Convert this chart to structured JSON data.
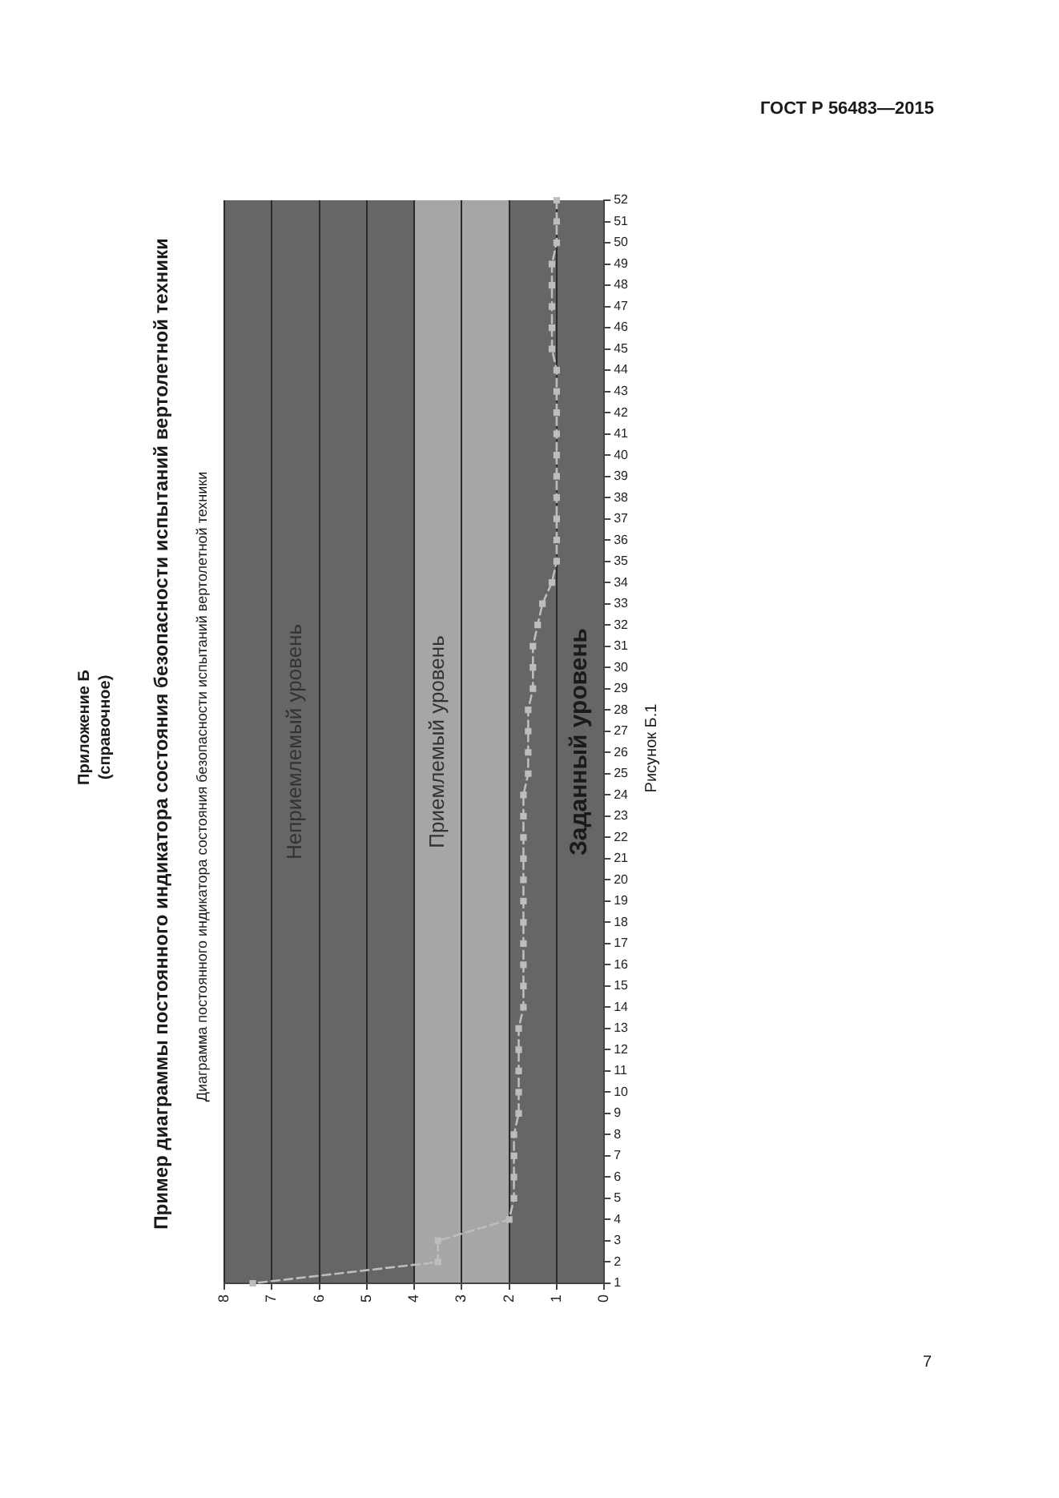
{
  "chart_data": {
    "type": "line",
    "orientation": "horizontal",
    "title": "Пример диаграммы постоянного индикатора состояния безопасности испытаний вертолетной техники",
    "subtitle": "Диаграмма постоянного индикатора состояния безопасности испытаний вертолетной техники",
    "annotations": [
      "Приложение Б",
      "(справочное)",
      "Рисунок Б.1",
      "ГОСТ Р 56483—2015",
      "7"
    ],
    "categories": [
      "52",
      "51",
      "50",
      "49",
      "48",
      "47",
      "46",
      "45",
      "44",
      "43",
      "42",
      "41",
      "40",
      "39",
      "38",
      "37",
      "36",
      "35",
      "34",
      "33",
      "32",
      "31",
      "30",
      "29",
      "28",
      "27",
      "26",
      "25",
      "24",
      "23",
      "22",
      "21",
      "20",
      "19",
      "18",
      "17",
      "16",
      "15",
      "14",
      "13",
      "12",
      "11",
      "10",
      "9",
      "8",
      "7",
      "6",
      "5",
      "4",
      "3",
      "2",
      "1"
    ],
    "series": [
      {
        "color": "#bdbdbd",
        "values": [
          1.0,
          1.0,
          1.0,
          1.1,
          1.1,
          1.1,
          1.1,
          1.1,
          1.0,
          1.0,
          1.0,
          1.0,
          1.0,
          1.0,
          1.0,
          1.0,
          1.0,
          1.0,
          1.1,
          1.3,
          1.4,
          1.5,
          1.5,
          1.5,
          1.6,
          1.6,
          1.6,
          1.6,
          1.7,
          1.7,
          1.7,
          1.7,
          1.7,
          1.7,
          1.7,
          1.7,
          1.7,
          1.7,
          1.7,
          1.8,
          1.8,
          1.8,
          1.8,
          1.8,
          1.9,
          1.9,
          1.9,
          1.9,
          2.0,
          3.5,
          3.5,
          7.4
        ]
      }
    ],
    "xlim": [
      8,
      0
    ],
    "xticks": [
      8,
      7,
      6,
      5,
      4,
      3,
      2,
      1,
      0
    ],
    "bands": [
      {
        "axis": "x",
        "from": 0,
        "to": 2,
        "label": "Заданный уровень",
        "color": "#666666"
      },
      {
        "axis": "x",
        "from": 2,
        "to": 4,
        "label": "Приемлемый уровень",
        "color": "#a6a6a6"
      },
      {
        "axis": "x",
        "from": 4,
        "to": 8,
        "label": "Неприемлемый уровень",
        "color": "#666666"
      }
    ],
    "grid": "x",
    "marker": "square",
    "line_style": "dashed"
  }
}
